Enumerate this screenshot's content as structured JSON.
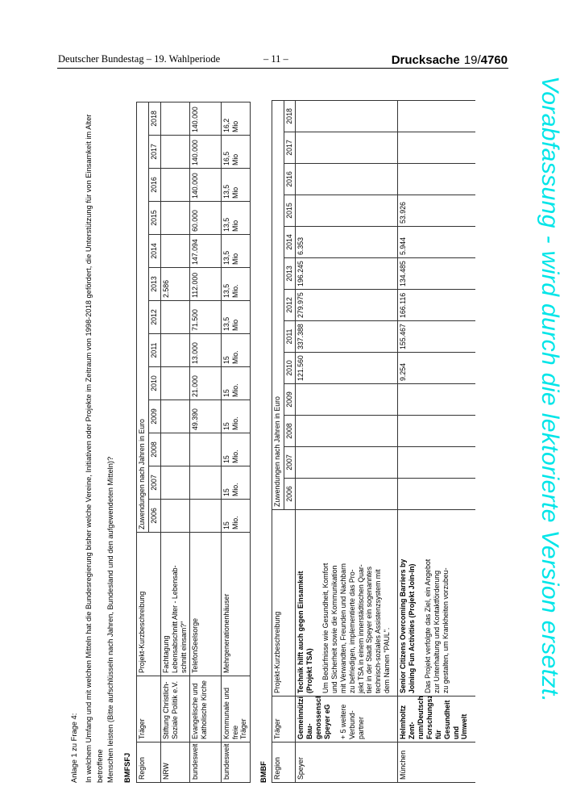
{
  "page_header": {
    "left": "Deutscher Bundestag – 19. Wahlperiode",
    "center": "– 11 –",
    "right_label": "Drucksache",
    "right_session": "19/",
    "right_number": "4760"
  },
  "watermark": {
    "text": "Vorabfassung - wird durch die lektorierte Version ersetzt.",
    "color": "#00e5e8"
  },
  "intro": {
    "title": "Anlage 1 zu Frage 4:",
    "question": "In welchem Umfang und mit welchen Mitteln hat die Bundesregierung bisher welche Vereine, Initiativen oder Projekte im Zeitraum von 1998-2018 gefördert, die Unterstützung für von Einsamkeit im Alter betroffene\nMenschen leisten (Bitte aufschlüsseln nach Jahren, Bundesland und den aufgewendeten Mitteln)?"
  },
  "tables": [
    {
      "section_label": "BMFSFJ",
      "headers": {
        "region": "Region",
        "traeger": "Träger",
        "projekt": "Projekt-Kurzbeschreibung",
        "zuwendungen": "Zuwendungen nach Jahren in Euro"
      },
      "years": [
        "2006",
        "2007",
        "2008",
        "2009",
        "2010",
        "2011",
        "2012",
        "2013",
        "2014",
        "2015",
        "2016",
        "2017",
        "2018"
      ],
      "rows": [
        {
          "region": "NRW",
          "traeger": {
            "text": "Stiftung Christlich-\nSoziale Politik e.V."
          },
          "projekt": {
            "text": "Fachtagung\nLebensabschnitt Alter - Lebensab-\nschnitt einsam?\""
          },
          "values": [
            "",
            "",
            "",
            "",
            "",
            "",
            "",
            "2.586",
            "",
            "",
            "",
            "",
            ""
          ]
        },
        {
          "region": "bundesweit",
          "traeger": {
            "text": "Evangelische und\nKatholische Kirche"
          },
          "projekt": {
            "text": "TelefonSeelsorge"
          },
          "values": [
            "",
            "",
            "",
            "49.390",
            "21.000",
            "13.000",
            "71.500",
            "112.000",
            "147.094",
            "60.000",
            "140.000",
            "140.000",
            "140.000"
          ]
        },
        {
          "region": "bundesweit",
          "traeger": {
            "text": "Kommunale und freie\nTräger"
          },
          "projekt": {
            "text": "Mehrgenerationenhäuser"
          },
          "values": [
            "15\nMio.",
            "15\nMio.",
            "15\nMio.",
            "15\nMio.",
            "15\nMio.",
            "15\nMio.",
            "13,5\nMio",
            "13,5\nMio.",
            "13,5\nMio",
            "13,5\nMio",
            "13,5\nMio",
            "16,5\nMio",
            "16,2\nMio"
          ]
        }
      ]
    },
    {
      "section_label": "BMBF",
      "headers": {
        "region": "Region",
        "traeger": "Träger",
        "projekt": "Projekt-Kurzbeschreibung",
        "zuwendungen": "Zuwendungen nach Jahren in Euro"
      },
      "years": [
        "2006",
        "2007",
        "2008",
        "2009",
        "2010",
        "2011",
        "2012",
        "2013",
        "2014",
        "2015",
        "2016",
        "2017",
        "2018"
      ],
      "rows": [
        {
          "region": "Speyer",
          "traeger": {
            "bold": "Gemeinnützige Bau-\ngenossenschaft\nSpeyer eG",
            "text": "+ 5 weitere Verbund-\npartner"
          },
          "projekt": {
            "bold": "Technik hilft auch gegen Einsamkeit\n(Projekt TSA)",
            "text": "Um Bedürfnisse wie Gesundheit, Komfort\nund Sicherheit sowie die Kommunikation\nmit Verwandten, Freunden und Nachbarn\nzu befriedigen, implementierte das Pro-\njekt TSA in einem innerstädtischen Quar-\ntier in der Stadt Speyer ein sogenanntes\ntechnisch-soziales Assistenzsystem mit\ndem Namen \"PAUL\"."
          },
          "values": [
            "",
            "",
            "",
            "",
            "121.560",
            "337.388",
            "279.975",
            "196.245",
            "6.353",
            "",
            "",
            "",
            ""
          ]
        },
        {
          "region": "München",
          "traeger": {
            "bold": "Helmholtz Zent-\nrum/Deutsches\nForschungszentrum\nfür Gesundheit und\nUmwelt"
          },
          "projekt": {
            "bold": "Senior Citizens Overcoming Barriers by\nJoining Fun Activities (Projekt Join-In)",
            "text": "Das Projekt verfolgte das Ziel, ein Angebot\nzur Unterhaltung und Kontaktförderung\nzu gestalten, um Krankheiten vorzubeu-"
          },
          "values": [
            "",
            "",
            "",
            "",
            "9.254",
            "155.467",
            "166.116",
            "134.485",
            "5.944",
            "53.926",
            "",
            "",
            ""
          ]
        }
      ]
    }
  ]
}
